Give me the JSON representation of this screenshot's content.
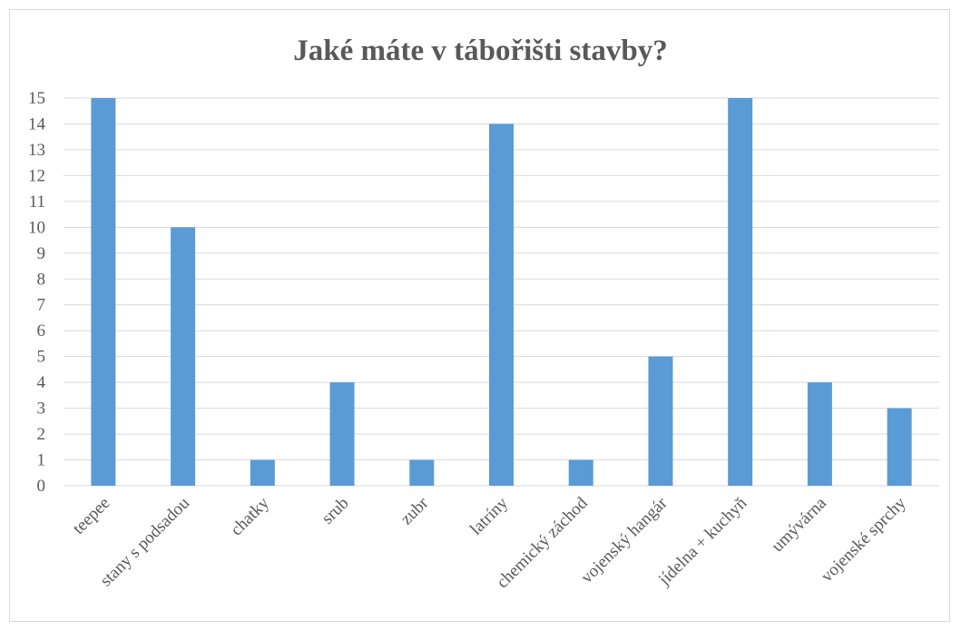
{
  "chart_data": {
    "type": "bar",
    "title": "Jaké máte v tábořišti stavby?",
    "xlabel": "",
    "ylabel": "",
    "categories": [
      "teepee",
      "stany s podsadou",
      "chatky",
      "srub",
      "zubr",
      "latríny",
      "chemický záchod",
      "vojenský hangár",
      "jídelna + kuchyň",
      "umývárna",
      "vojenské sprchy"
    ],
    "values": [
      15,
      10,
      1,
      4,
      1,
      14,
      1,
      5,
      15,
      4,
      3
    ],
    "ylim": [
      0,
      15
    ],
    "yticks": [
      0,
      1,
      2,
      3,
      4,
      5,
      6,
      7,
      8,
      9,
      10,
      11,
      12,
      13,
      14,
      15
    ],
    "grid": true,
    "legend": "none",
    "bar_color": "#5b9bd5",
    "grid_color": "#d9d9d9"
  }
}
